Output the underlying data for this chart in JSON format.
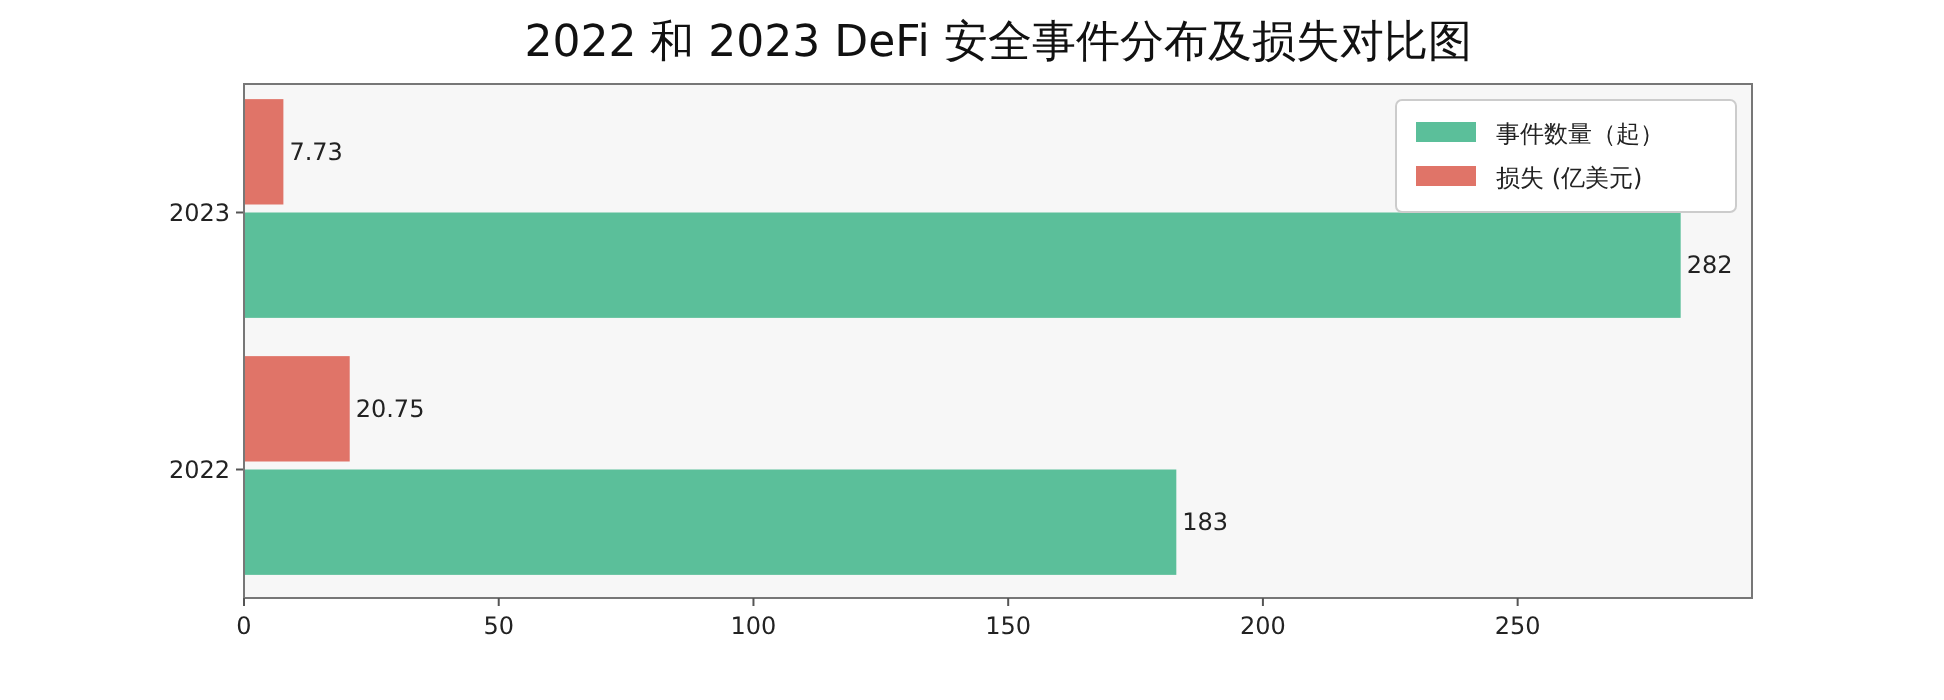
{
  "chart_data": {
    "type": "bar",
    "orientation": "horizontal",
    "title": "2022 和 2023 DeFi 安全事件分布及损失对比图",
    "categories": [
      "2023",
      "2022"
    ],
    "series": [
      {
        "name": "事件数量（起）",
        "color": "#5bbf9a",
        "values": [
          282,
          183
        ]
      },
      {
        "name": "损失 (亿美元)",
        "color": "#e07468",
        "values": [
          7.73,
          20.75
        ]
      }
    ],
    "xlim": [
      0,
      296
    ],
    "xticks": [
      0,
      50,
      100,
      150,
      200,
      250
    ],
    "data_labels": true,
    "legend": "top right"
  }
}
